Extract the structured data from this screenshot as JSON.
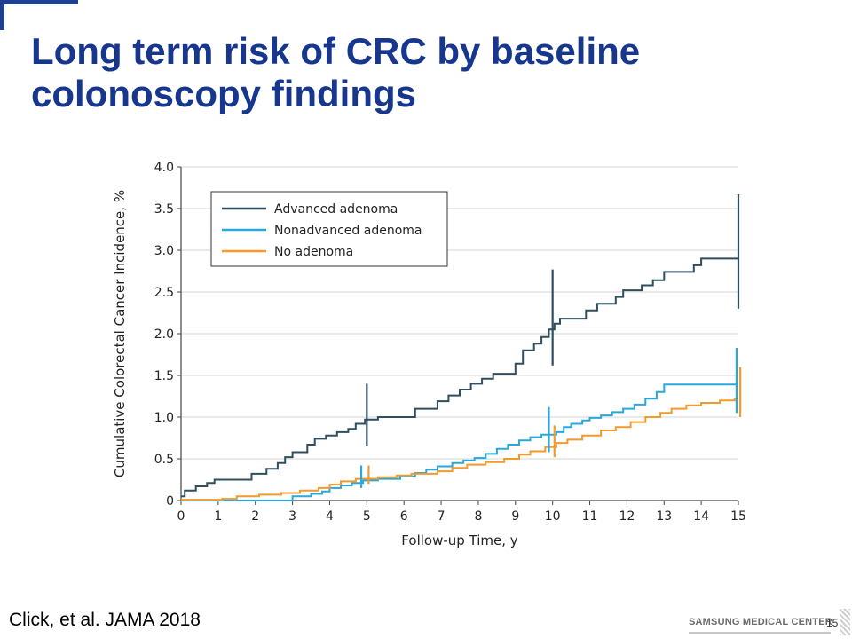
{
  "slide": {
    "title": "Long term risk of CRC by baseline colonoscopy findings",
    "citation": "Click, et al. JAMA 2018",
    "footer_logo": "SAMSUNG MEDICAL CENTER",
    "page_number": "15"
  },
  "chart_data": {
    "type": "line",
    "step": true,
    "xlabel": "Follow-up Time, y",
    "ylabel": "Cumulative Colorectal Cancer Incidence, %",
    "xlim": [
      0,
      15
    ],
    "ylim": [
      0,
      4.0
    ],
    "x_ticks": [
      "0",
      "1",
      "2",
      "3",
      "4",
      "5",
      "6",
      "7",
      "8",
      "9",
      "10",
      "11",
      "12",
      "13",
      "14",
      "15"
    ],
    "y_ticks": [
      "0",
      "0.5",
      "1.0",
      "1.5",
      "2.0",
      "2.5",
      "3.0",
      "3.5",
      "4.0"
    ],
    "grid": "horizontal",
    "legend_position": "top-left",
    "series": [
      {
        "name": "Advanced adenoma",
        "color": "#2f4f5f",
        "points": [
          [
            0,
            0.05
          ],
          [
            0.1,
            0.12
          ],
          [
            0.4,
            0.17
          ],
          [
            0.7,
            0.21
          ],
          [
            0.9,
            0.25
          ],
          [
            1.9,
            0.32
          ],
          [
            2.3,
            0.38
          ],
          [
            2.6,
            0.45
          ],
          [
            2.8,
            0.52
          ],
          [
            3.0,
            0.58
          ],
          [
            3.4,
            0.67
          ],
          [
            3.6,
            0.74
          ],
          [
            3.9,
            0.78
          ],
          [
            4.2,
            0.82
          ],
          [
            4.5,
            0.86
          ],
          [
            4.7,
            0.92
          ],
          [
            4.95,
            0.97
          ],
          [
            5.3,
            1.0
          ],
          [
            6.3,
            1.1
          ],
          [
            6.9,
            1.19
          ],
          [
            7.2,
            1.26
          ],
          [
            7.5,
            1.33
          ],
          [
            7.8,
            1.4
          ],
          [
            8.1,
            1.46
          ],
          [
            8.4,
            1.52
          ],
          [
            9.0,
            1.64
          ],
          [
            9.2,
            1.8
          ],
          [
            9.5,
            1.88
          ],
          [
            9.7,
            1.96
          ],
          [
            9.9,
            2.05
          ],
          [
            10.05,
            2.12
          ],
          [
            10.2,
            2.18
          ],
          [
            10.9,
            2.28
          ],
          [
            11.2,
            2.36
          ],
          [
            11.7,
            2.44
          ],
          [
            11.9,
            2.52
          ],
          [
            12.4,
            2.58
          ],
          [
            12.7,
            2.64
          ],
          [
            13.0,
            2.74
          ],
          [
            13.8,
            2.82
          ],
          [
            14.0,
            2.9
          ],
          [
            15.0,
            2.9
          ]
        ],
        "error_bars": [
          {
            "x": 5,
            "low": 0.65,
            "high": 1.4
          },
          {
            "x": 10,
            "low": 1.62,
            "high": 2.77
          },
          {
            "x": 15,
            "low": 2.3,
            "high": 3.67
          }
        ]
      },
      {
        "name": "Nonadvanced adenoma",
        "color": "#29a8de",
        "points": [
          [
            0,
            0
          ],
          [
            2.2,
            0
          ],
          [
            3.0,
            0.05
          ],
          [
            3.5,
            0.08
          ],
          [
            3.8,
            0.11
          ],
          [
            4.0,
            0.15
          ],
          [
            4.3,
            0.18
          ],
          [
            4.6,
            0.21
          ],
          [
            4.9,
            0.24
          ],
          [
            5.3,
            0.26
          ],
          [
            5.9,
            0.29
          ],
          [
            6.3,
            0.33
          ],
          [
            6.6,
            0.37
          ],
          [
            6.9,
            0.41
          ],
          [
            7.3,
            0.45
          ],
          [
            7.6,
            0.48
          ],
          [
            7.9,
            0.51
          ],
          [
            8.2,
            0.56
          ],
          [
            8.5,
            0.62
          ],
          [
            8.8,
            0.67
          ],
          [
            9.1,
            0.72
          ],
          [
            9.4,
            0.76
          ],
          [
            9.7,
            0.79
          ],
          [
            10.1,
            0.82
          ],
          [
            10.3,
            0.88
          ],
          [
            10.5,
            0.92
          ],
          [
            10.8,
            0.96
          ],
          [
            11.0,
            0.99
          ],
          [
            11.3,
            1.02
          ],
          [
            11.6,
            1.06
          ],
          [
            11.9,
            1.1
          ],
          [
            12.2,
            1.15
          ],
          [
            12.5,
            1.22
          ],
          [
            12.8,
            1.3
          ],
          [
            13.0,
            1.39
          ],
          [
            15.0,
            1.39
          ]
        ],
        "error_bars": [
          {
            "x": 4.85,
            "low": 0.15,
            "high": 0.42
          },
          {
            "x": 9.9,
            "low": 0.58,
            "high": 1.12
          },
          {
            "x": 14.95,
            "low": 1.05,
            "high": 1.83
          }
        ]
      },
      {
        "name": "No adenoma",
        "color": "#f29a2e",
        "points": [
          [
            0,
            0.01
          ],
          [
            1.1,
            0.02
          ],
          [
            1.5,
            0.05
          ],
          [
            2.1,
            0.07
          ],
          [
            2.7,
            0.09
          ],
          [
            3.2,
            0.12
          ],
          [
            3.7,
            0.15
          ],
          [
            4.0,
            0.19
          ],
          [
            4.3,
            0.23
          ],
          [
            4.7,
            0.26
          ],
          [
            5.3,
            0.28
          ],
          [
            5.8,
            0.3
          ],
          [
            6.2,
            0.32
          ],
          [
            6.9,
            0.35
          ],
          [
            7.3,
            0.39
          ],
          [
            7.7,
            0.43
          ],
          [
            8.2,
            0.46
          ],
          [
            8.7,
            0.5
          ],
          [
            9.1,
            0.55
          ],
          [
            9.4,
            0.59
          ],
          [
            9.8,
            0.64
          ],
          [
            10.1,
            0.69
          ],
          [
            10.4,
            0.73
          ],
          [
            10.8,
            0.78
          ],
          [
            11.3,
            0.84
          ],
          [
            11.7,
            0.88
          ],
          [
            12.1,
            0.94
          ],
          [
            12.5,
            1.0
          ],
          [
            12.9,
            1.05
          ],
          [
            13.2,
            1.1
          ],
          [
            13.6,
            1.14
          ],
          [
            14.0,
            1.17
          ],
          [
            14.5,
            1.2
          ],
          [
            14.9,
            1.22
          ],
          [
            15.0,
            1.22
          ]
        ],
        "error_bars": [
          {
            "x": 5.05,
            "low": 0.2,
            "high": 0.42
          },
          {
            "x": 10.05,
            "low": 0.52,
            "high": 0.9
          },
          {
            "x": 15.05,
            "low": 1.0,
            "high": 1.6
          }
        ]
      }
    ]
  }
}
